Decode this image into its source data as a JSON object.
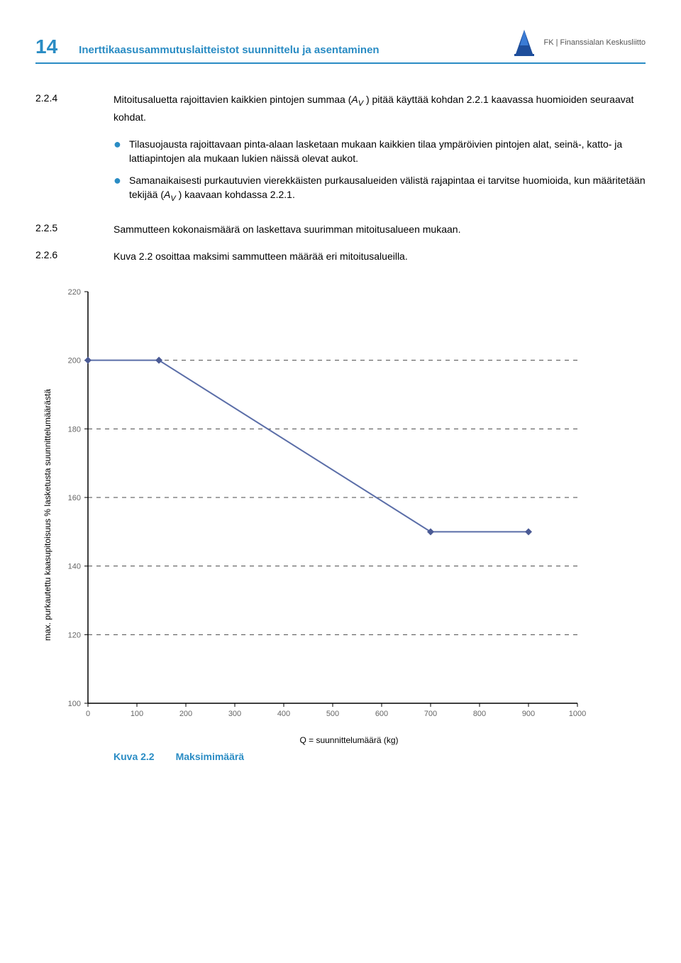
{
  "header": {
    "page_number": "14",
    "doc_title": "Inerttikaasusammutuslaitteistot suunnittelu ja asentaminen",
    "org_name": "FK | Finanssialan Keskusliitto"
  },
  "paragraphs": {
    "p224_num": "2.2.4",
    "p224_text_a": "Mitoitusaluetta rajoittavien kaikkien pintojen summaa (",
    "p224_av": "A",
    "p224_av_sub": "V",
    "p224_text_b": " ) pitää käyttää kohdan 2.2.1 kaavassa huomioiden seuraavat kohdat.",
    "bullet1": "Tilasuojausta rajoittavaan pinta-alaan lasketaan mukaan kaikkien tilaa ympäröivien pintojen alat, seinä-, katto- ja lattiapintojen ala mukaan lukien näissä olevat aukot.",
    "bullet2_a": "Samanaikaisesti purkautuvien vierekkäisten purkausalueiden välistä rajapintaa ei tarvitse huomioida, kun määritetään tekijää (",
    "bullet2_av": "A",
    "bullet2_av_sub": "V",
    "bullet2_b": " ) kaavaan kohdassa 2.2.1.",
    "p225_num": "2.2.5",
    "p225_text": "Sammutteen kokonaismäärä on laskettava suurimman mitoitusalueen mukaan.",
    "p226_num": "2.2.6",
    "p226_text": "Kuva 2.2 osoittaa maksimi sammutteen määrää eri mitoitusalueilla."
  },
  "chart": {
    "type": "line",
    "background_color": "#ffffff",
    "grid_color": "#4a4a4a",
    "axis_color": "#000000",
    "line_color": "#5b6ea8",
    "marker_color": "#4a5a95",
    "line_width": 2,
    "marker_size": 5,
    "dash": "6,6",
    "tick_fontsize": 11,
    "tick_color": "#666666",
    "xlim": [
      0,
      1000
    ],
    "ylim": [
      100,
      220
    ],
    "xticks": [
      0,
      100,
      200,
      300,
      400,
      500,
      600,
      700,
      800,
      900,
      1000
    ],
    "yticks": [
      100,
      120,
      140,
      160,
      180,
      200,
      220
    ],
    "points": [
      [
        0,
        200
      ],
      [
        145,
        200
      ],
      [
        700,
        150
      ],
      [
        900,
        150
      ]
    ],
    "ylabel": "max. purkautettu kaasupitoisuus % lasketusta suunnittelumäärästä",
    "xlabel": "Q = suunnittelumäärä (kg)",
    "caption_num": "Kuva 2.2",
    "caption_text": "Maksimimäärä"
  },
  "colors": {
    "accent": "#2a8cc4",
    "text": "#000000"
  }
}
